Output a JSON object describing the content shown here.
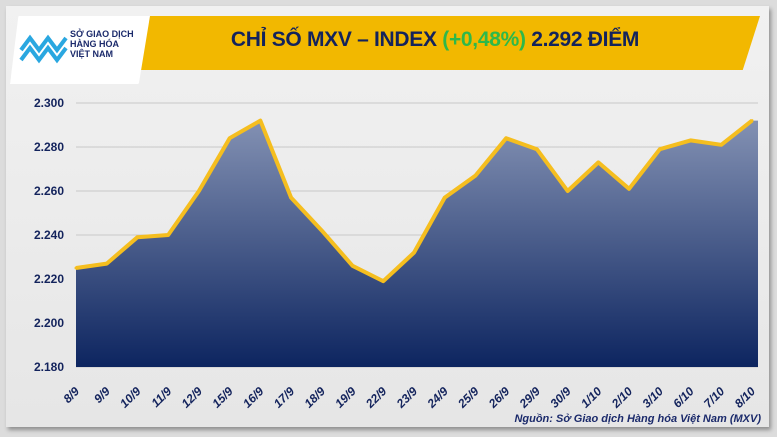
{
  "header": {
    "title_prefix": "CHỈ SỐ MXV – INDEX",
    "change": "(+0,48%)",
    "title_suffix": "2.292 ĐIỂM",
    "change_color": "#2eb84a",
    "banner_color": "#f2b800"
  },
  "logo": {
    "line1": "SỞ GIAO DỊCH",
    "line2": "HÀNG HÓA",
    "line3": "VIỆT NAM"
  },
  "source": "Nguồn: Sở Giao dịch Hàng hóa Việt Nam (MXV)",
  "chart_data": {
    "type": "area",
    "title": "",
    "xlabel": "",
    "ylabel": "",
    "ylim": [
      2.18,
      2.3
    ],
    "y_ticks": [
      "2.180",
      "2.200",
      "2.220",
      "2.240",
      "2.260",
      "2.280",
      "2.300"
    ],
    "grid": true,
    "line_color": "#f5be1f",
    "fill_color_top": "#8391b3",
    "fill_color_bottom": "#0d2560",
    "categories": [
      "8/9",
      "9/9",
      "10/9",
      "11/9",
      "12/9",
      "15/9",
      "16/9",
      "17/9",
      "18/9",
      "19/9",
      "22/9",
      "23/9",
      "24/9",
      "25/9",
      "26/9",
      "29/9",
      "30/9",
      "1/10",
      "2/10",
      "3/10",
      "6/10",
      "7/10",
      "8/10"
    ],
    "values": [
      2.225,
      2.227,
      2.239,
      2.24,
      2.26,
      2.284,
      2.292,
      2.257,
      2.242,
      2.226,
      2.219,
      2.232,
      2.257,
      2.267,
      2.284,
      2.279,
      2.26,
      2.273,
      2.261,
      2.279,
      2.283,
      2.281,
      2.292
    ]
  }
}
